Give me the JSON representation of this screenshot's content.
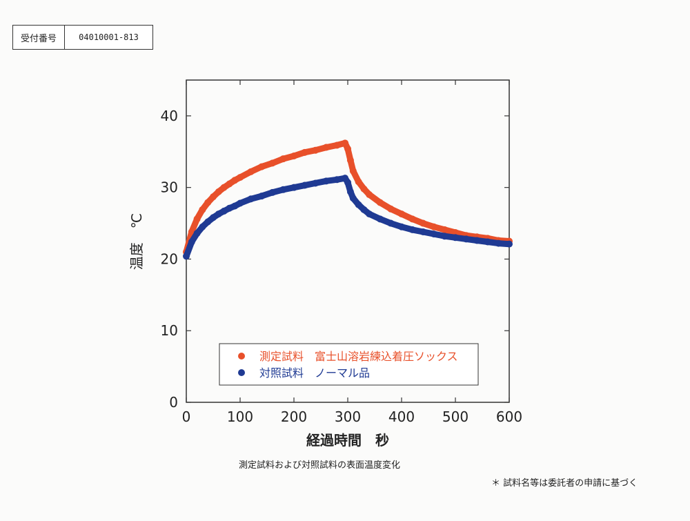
{
  "receipt": {
    "label": "受付番号",
    "value": "04010001-813"
  },
  "chart_data": {
    "type": "scatter",
    "xlabel": "経過時間　秒",
    "ylabel": "温度　℃",
    "xlim": [
      0,
      600
    ],
    "ylim": [
      0,
      45
    ],
    "x_ticks": [
      0,
      100,
      200,
      300,
      400,
      500,
      600
    ],
    "y_ticks": [
      0,
      10,
      20,
      30,
      40
    ],
    "grid": false,
    "legend_position": "bottom-center",
    "series": [
      {
        "name": "測定試料　富士山溶岩練込着圧ソックス",
        "color": "#e8502a",
        "x": [
          0,
          10,
          20,
          30,
          40,
          50,
          60,
          70,
          80,
          90,
          100,
          120,
          140,
          160,
          180,
          200,
          220,
          240,
          260,
          280,
          295,
          300,
          305,
          310,
          320,
          330,
          340,
          360,
          380,
          400,
          420,
          440,
          460,
          480,
          500,
          520,
          540,
          560,
          580,
          600
        ],
        "y": [
          21.0,
          23.8,
          25.6,
          26.9,
          27.9,
          28.7,
          29.4,
          30.0,
          30.5,
          31.0,
          31.4,
          32.2,
          32.9,
          33.4,
          34.0,
          34.4,
          34.9,
          35.2,
          35.6,
          35.9,
          36.2,
          35.4,
          33.8,
          32.3,
          30.8,
          29.8,
          29.0,
          27.9,
          27.0,
          26.3,
          25.6,
          25.0,
          24.5,
          24.1,
          23.7,
          23.3,
          23.1,
          22.9,
          22.6,
          22.5
        ]
      },
      {
        "name": "対照試料　ノーマル品",
        "color": "#1f3a93",
        "x": [
          0,
          10,
          20,
          30,
          40,
          50,
          60,
          70,
          80,
          90,
          100,
          120,
          140,
          160,
          180,
          200,
          220,
          240,
          260,
          280,
          295,
          300,
          305,
          310,
          320,
          330,
          340,
          360,
          380,
          400,
          420,
          440,
          460,
          480,
          500,
          520,
          540,
          560,
          580,
          600
        ],
        "y": [
          20.4,
          22.4,
          23.6,
          24.5,
          25.2,
          25.8,
          26.3,
          26.7,
          27.1,
          27.4,
          27.8,
          28.4,
          28.8,
          29.3,
          29.7,
          30.0,
          30.3,
          30.6,
          30.9,
          31.1,
          31.3,
          30.7,
          29.4,
          28.5,
          27.6,
          26.9,
          26.3,
          25.6,
          25.0,
          24.5,
          24.1,
          23.8,
          23.5,
          23.2,
          23.0,
          22.8,
          22.6,
          22.4,
          22.2,
          22.1
        ]
      }
    ]
  },
  "caption": "測定試料および対照試料の表面温度変化",
  "footnote": "＊ 試料名等は委託者の申請に基づく"
}
